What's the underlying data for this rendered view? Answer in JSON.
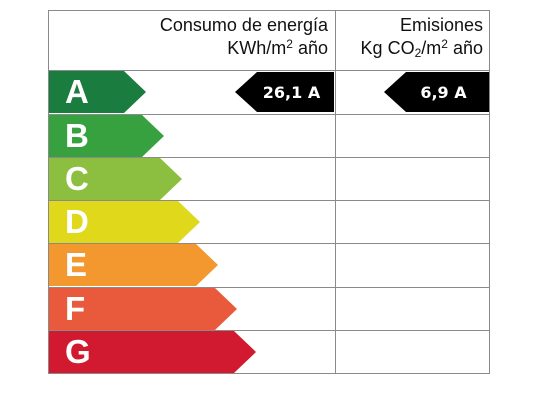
{
  "header": {
    "consumption_title": "Consumo de energía",
    "consumption_unit_prefix": "KWh/m",
    "consumption_unit_sup": "2",
    "consumption_unit_suffix": " año",
    "emissions_title": "Emisiones",
    "emissions_unit_prefix": "Kg CO",
    "emissions_unit_sub": "2",
    "emissions_unit_mid": "/m",
    "emissions_unit_sup": "2",
    "emissions_unit_suffix": " año"
  },
  "ratings": [
    {
      "letter": "A",
      "color": "#1a7c3e"
    },
    {
      "letter": "B",
      "color": "#37a13f"
    },
    {
      "letter": "C",
      "color": "#8cbf3f"
    },
    {
      "letter": "D",
      "color": "#e0d81a"
    },
    {
      "letter": "E",
      "color": "#f2982e"
    },
    {
      "letter": "F",
      "color": "#e95a3c"
    },
    {
      "letter": "G",
      "color": "#d11a2f"
    }
  ],
  "consumption_marker": {
    "label": "26,1 A",
    "rating": "A"
  },
  "emissions_marker": {
    "label": "6,9 A",
    "rating": "A"
  }
}
